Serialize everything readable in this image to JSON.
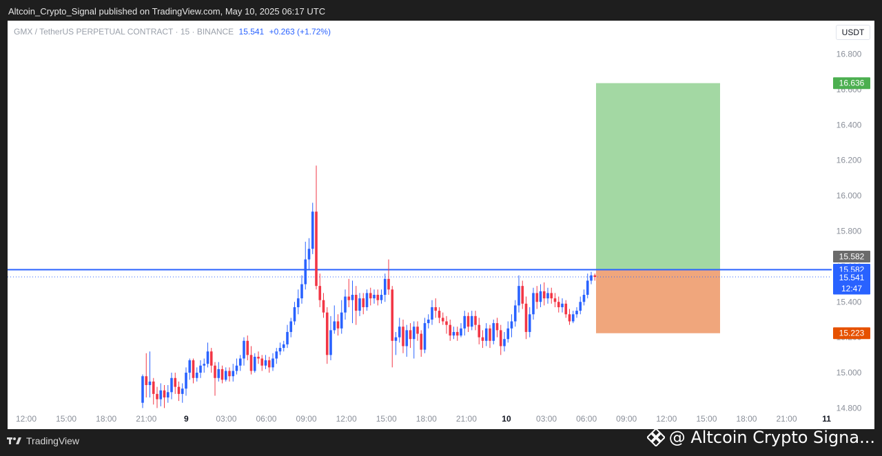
{
  "header": {
    "published": "Altcoin_Crypto_Signal published on TradingView.com, May 10, 2025 06:17 UTC"
  },
  "legend": {
    "symbol": "GMX / TetherUS PERPETUAL CONTRACT · 15 · BINANCE",
    "price": "15.541",
    "change": "+0.263 (+1.72%)"
  },
  "unit_button": "USDT",
  "footer": {
    "brand": "TradingView",
    "watermark": "@ Altcoin Crypto Signa..."
  },
  "colors": {
    "up": "#2962ff",
    "down": "#f23645",
    "target": "#a3d8a3",
    "stop": "#f0a67c",
    "line": "#2962ff"
  },
  "chart_data": {
    "type": "candlestick",
    "symbol": "GMX / TetherUS PERPETUAL CONTRACT",
    "interval": "15",
    "exchange": "BINANCE",
    "y_ticks": [
      "16.800",
      "16.600",
      "16.400",
      "16.200",
      "16.000",
      "15.800",
      "15.600",
      "15.400",
      "15.200",
      "15.000",
      "14.800"
    ],
    "x_ticks": [
      {
        "label": "12:00",
        "bold": false
      },
      {
        "label": "15:00",
        "bold": false
      },
      {
        "label": "18:00",
        "bold": false
      },
      {
        "label": "21:00",
        "bold": false
      },
      {
        "label": "9",
        "bold": true
      },
      {
        "label": "03:00",
        "bold": false
      },
      {
        "label": "06:00",
        "bold": false
      },
      {
        "label": "09:00",
        "bold": false
      },
      {
        "label": "12:00",
        "bold": false
      },
      {
        "label": "15:00",
        "bold": false
      },
      {
        "label": "18:00",
        "bold": false
      },
      {
        "label": "21:00",
        "bold": false
      },
      {
        "label": "10",
        "bold": true
      },
      {
        "label": "03:00",
        "bold": false
      },
      {
        "label": "06:00",
        "bold": false
      },
      {
        "label": "09:00",
        "bold": false
      },
      {
        "label": "12:00",
        "bold": false
      },
      {
        "label": "15:00",
        "bold": false
      },
      {
        "label": "18:00",
        "bold": false
      },
      {
        "label": "21:00",
        "bold": false
      },
      {
        "label": "11",
        "bold": true
      }
    ],
    "y_range": [
      14.79,
      16.88
    ],
    "horizontal_line": 15.582,
    "position": {
      "entry": 15.582,
      "target": 16.636,
      "stop": 15.223
    },
    "price_labels": [
      {
        "value": "16.636",
        "role": "target",
        "color": "#4caf50"
      },
      {
        "value": "15.582",
        "role": "grey",
        "color": "#6b6b6b"
      },
      {
        "value": "15.582",
        "role": "line",
        "color": "#2962ff"
      },
      {
        "value": "15.541",
        "role": "last",
        "color": "#2962ff"
      },
      {
        "value": "12:47",
        "role": "countdown",
        "color": "#2962ff"
      },
      {
        "value": "15.223",
        "role": "stop",
        "color": "#e65100"
      }
    ],
    "candles_ohlc": [
      [
        14.83,
        14.98,
        14.99,
        14.8
      ],
      [
        14.98,
        14.93,
        15.11,
        14.86
      ],
      [
        14.93,
        14.95,
        15.12,
        14.86
      ],
      [
        14.95,
        14.88,
        14.97,
        14.82
      ],
      [
        14.88,
        14.85,
        14.92,
        14.8
      ],
      [
        14.85,
        14.9,
        14.94,
        14.81
      ],
      [
        14.9,
        14.86,
        14.93,
        14.8
      ],
      [
        14.86,
        14.89,
        14.93,
        14.83
      ],
      [
        14.89,
        14.97,
        15.0,
        14.85
      ],
      [
        14.97,
        14.92,
        15.0,
        14.88
      ],
      [
        14.92,
        14.88,
        14.95,
        14.84
      ],
      [
        14.88,
        14.91,
        14.94,
        14.83
      ],
      [
        14.91,
        15.0,
        15.03,
        14.87
      ],
      [
        15.0,
        15.07,
        15.08,
        14.96
      ],
      [
        15.07,
        14.97,
        15.08,
        14.94
      ],
      [
        14.97,
        15.0,
        15.03,
        14.95
      ],
      [
        15.0,
        15.04,
        15.07,
        14.97
      ],
      [
        15.04,
        15.05,
        15.08,
        15.0
      ],
      [
        15.05,
        15.12,
        15.17,
        15.03
      ],
      [
        15.12,
        15.04,
        15.14,
        15.0
      ],
      [
        15.04,
        14.97,
        15.06,
        14.87
      ],
      [
        14.97,
        15.02,
        15.06,
        14.95
      ],
      [
        15.02,
        14.96,
        15.04,
        14.94
      ],
      [
        14.96,
        15.01,
        15.03,
        14.95
      ],
      [
        15.01,
        14.98,
        15.03,
        14.95
      ],
      [
        14.98,
        15.01,
        15.05,
        14.95
      ],
      [
        15.01,
        15.04,
        15.08,
        14.99
      ],
      [
        15.04,
        15.08,
        15.1,
        15.01
      ],
      [
        15.08,
        15.18,
        15.2,
        15.04
      ],
      [
        15.18,
        15.1,
        15.21,
        15.07
      ],
      [
        15.1,
        15.01,
        15.15,
        14.99
      ],
      [
        15.01,
        15.09,
        15.11,
        15.0
      ],
      [
        15.09,
        15.08,
        15.12,
        15.05
      ],
      [
        15.08,
        15.04,
        15.1,
        15.01
      ],
      [
        15.04,
        15.07,
        15.1,
        15.02
      ],
      [
        15.07,
        15.03,
        15.09,
        15.0
      ],
      [
        15.03,
        15.08,
        15.11,
        15.01
      ],
      [
        15.08,
        15.12,
        15.14,
        15.05
      ],
      [
        15.12,
        15.14,
        15.17,
        15.1
      ],
      [
        15.14,
        15.16,
        15.18,
        15.12
      ],
      [
        15.16,
        15.23,
        15.27,
        15.14
      ],
      [
        15.23,
        15.29,
        15.31,
        15.2
      ],
      [
        15.29,
        15.37,
        15.4,
        15.27
      ],
      [
        15.37,
        15.42,
        15.47,
        15.33
      ],
      [
        15.42,
        15.5,
        15.55,
        15.39
      ],
      [
        15.5,
        15.64,
        15.74,
        15.47
      ],
      [
        15.64,
        15.7,
        15.76,
        15.58
      ],
      [
        15.7,
        15.91,
        15.96,
        15.67
      ],
      [
        15.91,
        15.49,
        16.17,
        15.47
      ],
      [
        15.49,
        15.41,
        15.56,
        15.37
      ],
      [
        15.41,
        15.34,
        15.45,
        15.31
      ],
      [
        15.34,
        15.1,
        15.37,
        15.05
      ],
      [
        15.1,
        15.24,
        15.32,
        15.07
      ],
      [
        15.24,
        15.29,
        15.38,
        15.22
      ],
      [
        15.29,
        15.25,
        15.33,
        15.21
      ],
      [
        15.25,
        15.34,
        15.41,
        15.22
      ],
      [
        15.34,
        15.43,
        15.47,
        15.3
      ],
      [
        15.43,
        15.41,
        15.53,
        15.37
      ],
      [
        15.41,
        15.44,
        15.52,
        15.28
      ],
      [
        15.44,
        15.35,
        15.49,
        15.27
      ],
      [
        15.35,
        15.42,
        15.45,
        15.32
      ],
      [
        15.42,
        15.37,
        15.45,
        15.33
      ],
      [
        15.37,
        15.45,
        15.47,
        15.35
      ],
      [
        15.45,
        15.42,
        15.48,
        15.38
      ],
      [
        15.42,
        15.44,
        15.47,
        15.39
      ],
      [
        15.44,
        15.41,
        15.47,
        15.38
      ],
      [
        15.41,
        15.44,
        15.47,
        15.39
      ],
      [
        15.44,
        15.53,
        15.56,
        15.4
      ],
      [
        15.53,
        15.47,
        15.64,
        15.44
      ],
      [
        15.47,
        15.18,
        15.49,
        15.03
      ],
      [
        15.18,
        15.2,
        15.23,
        15.1
      ],
      [
        15.2,
        15.26,
        15.31,
        15.17
      ],
      [
        15.26,
        15.15,
        15.3,
        15.11
      ],
      [
        15.15,
        15.24,
        15.27,
        15.09
      ],
      [
        15.24,
        15.19,
        15.28,
        15.14
      ],
      [
        15.19,
        15.26,
        15.29,
        15.08
      ],
      [
        15.26,
        15.22,
        15.29,
        15.18
      ],
      [
        15.22,
        15.13,
        15.24,
        15.09
      ],
      [
        15.13,
        15.28,
        15.31,
        15.11
      ],
      [
        15.28,
        15.3,
        15.33,
        15.25
      ],
      [
        15.3,
        15.37,
        15.41,
        15.27
      ],
      [
        15.37,
        15.35,
        15.42,
        15.31
      ],
      [
        15.35,
        15.31,
        15.37,
        15.28
      ],
      [
        15.31,
        15.29,
        15.34,
        15.27
      ],
      [
        15.29,
        15.27,
        15.32,
        15.22
      ],
      [
        15.27,
        15.21,
        15.3,
        15.18
      ],
      [
        15.21,
        15.23,
        15.26,
        15.19
      ],
      [
        15.23,
        15.21,
        15.26,
        15.18
      ],
      [
        15.21,
        15.25,
        15.28,
        15.2
      ],
      [
        15.25,
        15.32,
        15.35,
        15.21
      ],
      [
        15.32,
        15.26,
        15.34,
        15.23
      ],
      [
        15.26,
        15.32,
        15.35,
        15.24
      ],
      [
        15.32,
        15.27,
        15.35,
        15.24
      ],
      [
        15.27,
        15.2,
        15.31,
        15.16
      ],
      [
        15.2,
        15.18,
        15.24,
        15.14
      ],
      [
        15.18,
        15.25,
        15.28,
        15.15
      ],
      [
        15.25,
        15.18,
        15.27,
        15.14
      ],
      [
        15.18,
        15.28,
        15.3,
        15.16
      ],
      [
        15.28,
        15.24,
        15.31,
        15.2
      ],
      [
        15.24,
        15.15,
        15.27,
        15.1
      ],
      [
        15.15,
        15.19,
        15.23,
        15.12
      ],
      [
        15.19,
        15.25,
        15.29,
        15.17
      ],
      [
        15.25,
        15.29,
        15.33,
        15.2
      ],
      [
        15.29,
        15.38,
        15.41,
        15.26
      ],
      [
        15.38,
        15.49,
        15.55,
        15.34
      ],
      [
        15.49,
        15.39,
        15.52,
        15.36
      ],
      [
        15.39,
        15.23,
        15.43,
        15.19
      ],
      [
        15.23,
        15.33,
        15.37,
        15.2
      ],
      [
        15.33,
        15.45,
        15.48,
        15.3
      ],
      [
        15.45,
        15.4,
        15.49,
        15.36
      ],
      [
        15.4,
        15.46,
        15.5,
        15.37
      ],
      [
        15.46,
        15.42,
        15.51,
        15.38
      ],
      [
        15.42,
        15.45,
        15.48,
        15.39
      ],
      [
        15.45,
        15.42,
        15.48,
        15.39
      ],
      [
        15.42,
        15.4,
        15.45,
        15.37
      ],
      [
        15.4,
        15.37,
        15.43,
        15.34
      ],
      [
        15.37,
        15.39,
        15.42,
        15.34
      ],
      [
        15.39,
        15.33,
        15.41,
        15.31
      ],
      [
        15.33,
        15.29,
        15.36,
        15.27
      ],
      [
        15.29,
        15.33,
        15.35,
        15.28
      ],
      [
        15.33,
        15.35,
        15.37,
        15.31
      ],
      [
        15.35,
        15.4,
        15.43,
        15.33
      ],
      [
        15.4,
        15.44,
        15.47,
        15.38
      ],
      [
        15.44,
        15.52,
        15.56,
        15.42
      ],
      [
        15.52,
        15.55,
        15.57,
        15.5
      ],
      [
        15.55,
        15.541,
        15.56,
        15.52
      ]
    ]
  }
}
